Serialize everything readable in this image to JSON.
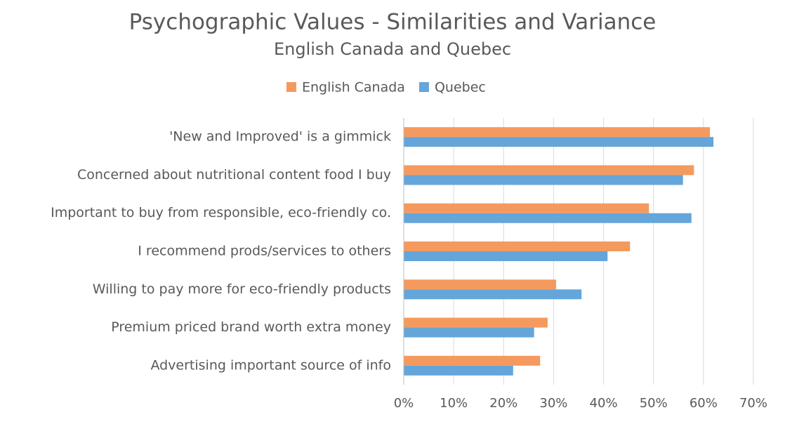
{
  "chart_data": {
    "type": "bar",
    "orientation": "horizontal",
    "title": "Psychographic Values - Similarities and Variance",
    "subtitle": "English Canada and Quebec",
    "categories": [
      "'New and Improved' is a gimmick",
      "Concerned about nutritional content food I buy",
      "Important to buy from responsible, eco-friendly co.",
      "I recommend prods/services to others",
      "Willing to pay more for eco-friendly products",
      "Premium priced brand worth extra money",
      "Advertising important source of info"
    ],
    "series": [
      {
        "name": "English Canada",
        "color": "#f59a5e",
        "values": [
          61.3,
          58.1,
          49.1,
          45.3,
          30.5,
          28.8,
          27.3
        ]
      },
      {
        "name": "Quebec",
        "color": "#64a5da",
        "values": [
          62.0,
          55.9,
          57.6,
          40.8,
          35.6,
          26.1,
          21.9
        ]
      }
    ],
    "xlim": [
      0,
      70
    ],
    "xticks": [
      {
        "value": 0,
        "label": "0%"
      },
      {
        "value": 10,
        "label": "10%"
      },
      {
        "value": 20,
        "label": "20%"
      },
      {
        "value": 30,
        "label": "30%"
      },
      {
        "value": 40,
        "label": "40%"
      },
      {
        "value": 50,
        "label": "50%"
      },
      {
        "value": 60,
        "label": "60%"
      },
      {
        "value": 70,
        "label": "70%"
      }
    ],
    "grid": true,
    "legend": "top"
  }
}
